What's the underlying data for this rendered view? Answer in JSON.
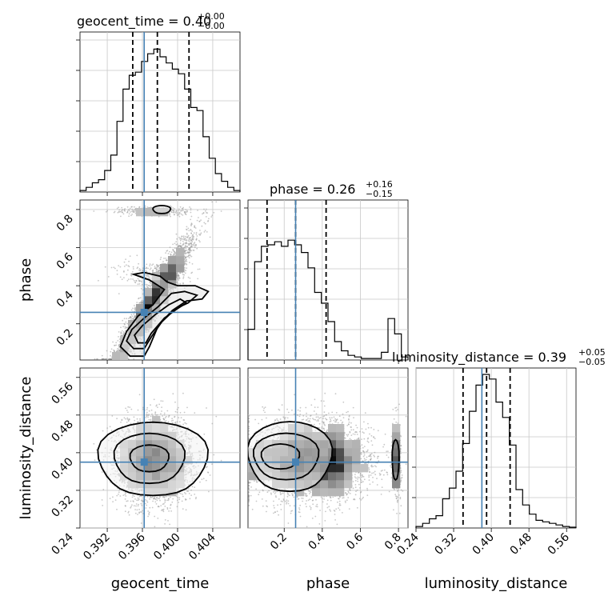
{
  "chart_data": {
    "type": "corner",
    "parameters": [
      "geocent_time",
      "phase",
      "luminosity_distance"
    ],
    "truth": {
      "geocent_time": 0.3962,
      "phase": 0.26,
      "luminosity_distance": 0.38
    },
    "titles": [
      {
        "label": "geocent_time = 0.40",
        "plus": "+0.00",
        "minus": "−0.00"
      },
      {
        "label": "phase = 0.26",
        "plus": "+0.16",
        "minus": "−0.15"
      },
      {
        "label": "luminosity_distance = 0.39",
        "plus": "+0.05",
        "minus": "−0.05"
      }
    ],
    "axes": {
      "geocent_time": {
        "range": [
          0.3889,
          0.4071
        ],
        "ticks": [
          "0.392",
          "0.396",
          "0.400",
          "0.404"
        ],
        "tick_values": [
          0.392,
          0.396,
          0.4,
          0.404
        ]
      },
      "phase": {
        "range": [
          0.01,
          0.85
        ],
        "ticks_x": [
          "0.2",
          "0.4",
          "0.6",
          "0.8"
        ],
        "ticks_y": [
          "0.2",
          "0.4",
          "0.6",
          "0.8"
        ],
        "tick_values": [
          0.2,
          0.4,
          0.6,
          0.8
        ]
      },
      "luminosity_distance": {
        "range": [
          0.24,
          0.58
        ],
        "ticks": [
          "0.24",
          "0.32",
          "0.40",
          "0.48",
          "0.56"
        ],
        "tick_values": [
          0.24,
          0.32,
          0.4,
          0.48,
          0.56
        ]
      }
    },
    "quantiles": {
      "geocent_time": [
        0.3949,
        0.3977,
        0.4013
      ],
      "phase": [
        0.11,
        0.26,
        0.42
      ],
      "luminosity_distance": [
        0.34,
        0.39,
        0.44
      ]
    },
    "histograms": {
      "geocent_time": [
        0.01,
        0.03,
        0.06,
        0.08,
        0.14,
        0.24,
        0.46,
        0.67,
        0.76,
        0.78,
        0.85,
        0.9,
        0.93,
        0.88,
        0.84,
        0.8,
        0.77,
        0.67,
        0.55,
        0.53,
        0.36,
        0.22,
        0.12,
        0.07,
        0.03,
        0.01
      ],
      "phase": [
        0.2,
        0.64,
        0.74,
        0.75,
        0.77,
        0.74,
        0.78,
        0.75,
        0.7,
        0.6,
        0.44,
        0.37,
        0.25,
        0.12,
        0.06,
        0.03,
        0.02,
        0.01,
        0.01,
        0.01,
        0.05,
        0.27,
        0.17,
        0.02
      ],
      "luminosity_distance": [
        0.01,
        0.03,
        0.06,
        0.08,
        0.19,
        0.26,
        0.37,
        0.55,
        0.76,
        0.93,
        1.0,
        0.97,
        0.82,
        0.72,
        0.54,
        0.25,
        0.15,
        0.09,
        0.05,
        0.04,
        0.03,
        0.02,
        0.01,
        0.005
      ]
    }
  }
}
